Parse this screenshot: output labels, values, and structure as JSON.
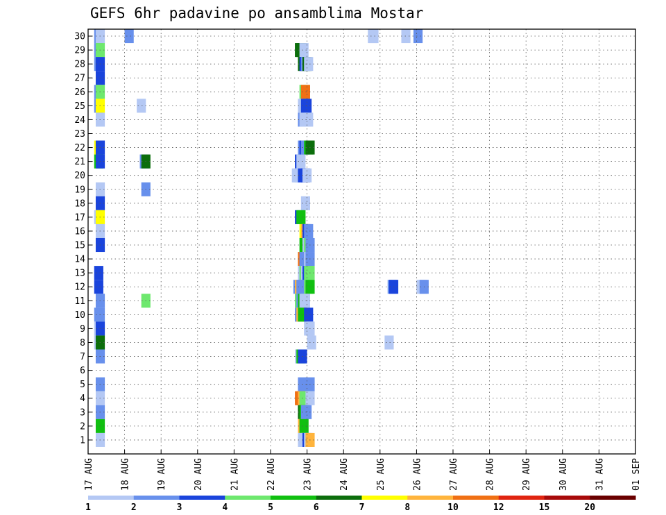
{
  "chart_data": {
    "type": "heatmap",
    "title": "GEFS 6hr padavine po ansamblima Mostar",
    "x_tick_labels": [
      "17 AUG",
      "18 AUG",
      "19 AUG",
      "20 AUG",
      "21 AUG",
      "22 AUG",
      "23 AUG",
      "24 AUG",
      "25 AUG",
      "26 AUG",
      "27 AUG",
      "28 AUG",
      "29 AUG",
      "30 AUG",
      "31 AUG",
      "01 SEP"
    ],
    "y_tick_labels": [
      "1",
      "2",
      "3",
      "4",
      "5",
      "6",
      "7",
      "8",
      "9",
      "10",
      "11",
      "12",
      "13",
      "14",
      "15",
      "16",
      "17",
      "18",
      "19",
      "20",
      "21",
      "22",
      "23",
      "24",
      "25",
      "26",
      "27",
      "28",
      "29",
      "30"
    ],
    "colorbar_labels": [
      "1",
      "2",
      "3",
      "4",
      "5",
      "6",
      "7",
      "8",
      "10",
      "12",
      "15",
      "20"
    ],
    "colorbar_colors": [
      "#b4c8f4",
      "#6890ec",
      "#1a44dc",
      "#6ee86e",
      "#10c010",
      "#0c6e0c",
      "#ffff00",
      "#ffb43c",
      "#f07014",
      "#e02410",
      "#a80a0a",
      "#6a0000"
    ],
    "grid": true,
    "cells": [
      {
        "m": 30,
        "x": [
          [
            1,
            4,
            2
          ],
          [
            1,
            5,
            1
          ],
          [
            1,
            24,
            2
          ],
          [
            8,
            16,
            1
          ],
          [
            8,
            17,
            1
          ],
          [
            9,
            22,
            2
          ],
          [
            9,
            14,
            1
          ]
        ]
      },
      {
        "m": 29,
        "x": [
          [
            1,
            4,
            2
          ],
          [
            1,
            5,
            4
          ],
          [
            6,
            16,
            6
          ],
          [
            6,
            17,
            6
          ],
          [
            6,
            18,
            6
          ],
          [
            6,
            19,
            1
          ],
          [
            30,
            17,
            4
          ]
        ]
      },
      {
        "m": 28,
        "x": [
          [
            1,
            4,
            2
          ],
          [
            1,
            5,
            3
          ],
          [
            6,
            18,
            6
          ],
          [
            6,
            19,
            3
          ],
          [
            6,
            20,
            2
          ],
          [
            6,
            21,
            6
          ],
          [
            6,
            22,
            1
          ]
        ]
      },
      {
        "m": 27,
        "x": [
          [
            1,
            5,
            3
          ]
        ]
      },
      {
        "m": 26,
        "x": [
          [
            1,
            4,
            2
          ],
          [
            1,
            5,
            4
          ],
          [
            6,
            19,
            4
          ],
          [
            6,
            20,
            9
          ],
          [
            30,
            16,
            1
          ],
          [
            30,
            18,
            2
          ]
        ]
      },
      {
        "m": 25,
        "x": [
          [
            1,
            4,
            2
          ],
          [
            1,
            5,
            7
          ],
          [
            2,
            8,
            1
          ],
          [
            6,
            18,
            1
          ],
          [
            6,
            20,
            3
          ],
          [
            6,
            21,
            3
          ]
        ]
      },
      {
        "m": 24,
        "x": [
          [
            1,
            5,
            1
          ],
          [
            6,
            18,
            2
          ],
          [
            6,
            19,
            1
          ],
          [
            6,
            21,
            1
          ],
          [
            6,
            22,
            1
          ]
        ]
      },
      {
        "m": 23,
        "x": [
          [
            29,
            0,
            6
          ]
        ]
      },
      {
        "m": 22,
        "x": [
          [
            1,
            4,
            7
          ],
          [
            1,
            5,
            3
          ],
          [
            6,
            18,
            2
          ],
          [
            6,
            19,
            3
          ],
          [
            6,
            20,
            2
          ],
          [
            6,
            22,
            5
          ],
          [
            6,
            23,
            6
          ],
          [
            27,
            18,
            1
          ],
          [
            28,
            4,
            1
          ],
          [
            28,
            5,
            7
          ],
          [
            28,
            6,
            1
          ]
        ]
      },
      {
        "m": 21,
        "x": [
          [
            1,
            4,
            5
          ],
          [
            1,
            5,
            3
          ],
          [
            2,
            10,
            2
          ],
          [
            2,
            11,
            6
          ],
          [
            6,
            16,
            3
          ],
          [
            6,
            17,
            1
          ],
          [
            26,
            8,
            1
          ]
        ]
      },
      {
        "m": 20,
        "x": [
          [
            6,
            14,
            1
          ],
          [
            6,
            15,
            1
          ],
          [
            6,
            16,
            1
          ],
          [
            6,
            18,
            3
          ],
          [
            6,
            20,
            3
          ],
          [
            6,
            21,
            1
          ]
        ]
      },
      {
        "m": 19,
        "x": [
          [
            1,
            5,
            1
          ],
          [
            2,
            11,
            2
          ],
          [
            32,
            23,
            8
          ]
        ]
      },
      {
        "m": 18,
        "x": [
          [
            1,
            5,
            3
          ],
          [
            6,
            20,
            1
          ],
          [
            26,
            2,
            2
          ]
        ]
      },
      {
        "m": 17,
        "x": [
          [
            1,
            4,
            1
          ],
          [
            1,
            5,
            7
          ],
          [
            6,
            16,
            3
          ],
          [
            6,
            17,
            5
          ]
        ]
      },
      {
        "m": 16,
        "x": [
          [
            1,
            5,
            1
          ],
          [
            6,
            19,
            7
          ],
          [
            6,
            20,
            8
          ],
          [
            6,
            21,
            3
          ],
          [
            6,
            22,
            2
          ],
          [
            29,
            19,
            5
          ],
          [
            32,
            23,
            1
          ]
        ]
      },
      {
        "m": 15,
        "x": [
          [
            1,
            5,
            3
          ],
          [
            6,
            19,
            5
          ],
          [
            6,
            20,
            5
          ],
          [
            6,
            21,
            1
          ],
          [
            6,
            22,
            4
          ],
          [
            6,
            23,
            2
          ],
          [
            32,
            21,
            3
          ],
          [
            32,
            23,
            1
          ]
        ]
      },
      {
        "m": 14,
        "x": [
          [
            6,
            18,
            9
          ],
          [
            6,
            19,
            2
          ],
          [
            6,
            22,
            1
          ],
          [
            6,
            23,
            2
          ],
          [
            31,
            3,
            1
          ],
          [
            31,
            4,
            1
          ]
        ]
      },
      {
        "m": 13,
        "x": [
          [
            1,
            4,
            3
          ],
          [
            6,
            18,
            1
          ],
          [
            6,
            19,
            4
          ],
          [
            6,
            20,
            1
          ],
          [
            6,
            21,
            3
          ],
          [
            6,
            22,
            4
          ],
          [
            6,
            23,
            4
          ],
          [
            30,
            11,
            1
          ],
          [
            32,
            19,
            1
          ],
          [
            32,
            20,
            2
          ],
          [
            32,
            21,
            2
          ],
          [
            32,
            22,
            6
          ],
          [
            32,
            23,
            9
          ],
          [
            32,
            25,
            10
          ],
          [
            32,
            27,
            5
          ]
        ]
      },
      {
        "m": 12,
        "x": [
          [
            1,
            4,
            3
          ],
          [
            6,
            15,
            2
          ],
          [
            6,
            16,
            8
          ],
          [
            6,
            17,
            2
          ],
          [
            6,
            18,
            2
          ],
          [
            6,
            22,
            4
          ],
          [
            6,
            23,
            5
          ],
          [
            9,
            5,
            2
          ],
          [
            9,
            6,
            3
          ],
          [
            10,
            0,
            1
          ],
          [
            10,
            1,
            1
          ],
          [
            10,
            2,
            2
          ]
        ]
      },
      {
        "m": 11,
        "x": [
          [
            1,
            5,
            2
          ],
          [
            2,
            11,
            4
          ],
          [
            6,
            16,
            4
          ],
          [
            6,
            17,
            2
          ],
          [
            6,
            18,
            5
          ],
          [
            6,
            19,
            1
          ],
          [
            6,
            20,
            1
          ]
        ]
      },
      {
        "m": 10,
        "x": [
          [
            1,
            4,
            2
          ],
          [
            1,
            5,
            2
          ],
          [
            6,
            16,
            2
          ],
          [
            6,
            17,
            8
          ],
          [
            6,
            18,
            5
          ],
          [
            6,
            22,
            3
          ],
          [
            26,
            1,
            6
          ],
          [
            26,
            2,
            1
          ]
        ]
      },
      {
        "m": 9,
        "x": [
          [
            1,
            4,
            1
          ],
          [
            1,
            5,
            3
          ],
          [
            6,
            22,
            1
          ],
          [
            6,
            23,
            1
          ]
        ]
      },
      {
        "m": 8,
        "x": [
          [
            1,
            4,
            1
          ],
          [
            1,
            5,
            6
          ],
          [
            7,
            0,
            1
          ],
          [
            9,
            3,
            1
          ]
        ]
      },
      {
        "m": 7,
        "x": [
          [
            1,
            5,
            2
          ],
          [
            6,
            16,
            1
          ],
          [
            6,
            17,
            5
          ],
          [
            6,
            18,
            3
          ]
        ]
      },
      {
        "m": 6,
        "x": [
          [
            27,
            22,
            7
          ],
          [
            27,
            23,
            9
          ],
          [
            28,
            0,
            2
          ]
        ]
      },
      {
        "m": 5,
        "x": [
          [
            1,
            5,
            2
          ],
          [
            6,
            18,
            2
          ],
          [
            6,
            23,
            2
          ],
          [
            30,
            16,
            1
          ],
          [
            30,
            18,
            1
          ],
          [
            30,
            19,
            2
          ]
        ]
      },
      {
        "m": 4,
        "x": [
          [
            1,
            5,
            1
          ],
          [
            6,
            16,
            9
          ],
          [
            6,
            17,
            9
          ],
          [
            6,
            18,
            8
          ],
          [
            6,
            19,
            4
          ],
          [
            6,
            23,
            1
          ],
          [
            26,
            6,
            3
          ],
          [
            26,
            7,
            11
          ],
          [
            26,
            8,
            1
          ],
          [
            26,
            9,
            1
          ]
        ]
      },
      {
        "m": 3,
        "x": [
          [
            1,
            5,
            2
          ],
          [
            6,
            18,
            6
          ],
          [
            6,
            19,
            5
          ],
          [
            6,
            20,
            2
          ],
          [
            6,
            21,
            2
          ],
          [
            30,
            11,
            1
          ],
          [
            30,
            12,
            9
          ],
          [
            30,
            13,
            4
          ],
          [
            30,
            14,
            2
          ],
          [
            32,
            20,
            3
          ],
          [
            32,
            21,
            6
          ]
        ]
      },
      {
        "m": 2,
        "x": [
          [
            1,
            5,
            5
          ],
          [
            6,
            18,
            8
          ],
          [
            6,
            19,
            5
          ],
          [
            29,
            22,
            2
          ]
        ]
      },
      {
        "m": 1,
        "x": [
          [
            1,
            5,
            1
          ],
          [
            6,
            18,
            1
          ],
          [
            6,
            19,
            1
          ],
          [
            6,
            20,
            1
          ],
          [
            6,
            21,
            3
          ],
          [
            6,
            22,
            1
          ],
          [
            6,
            23,
            8
          ],
          [
            30,
            13,
            1
          ],
          [
            30,
            14,
            1
          ]
        ]
      }
    ]
  }
}
